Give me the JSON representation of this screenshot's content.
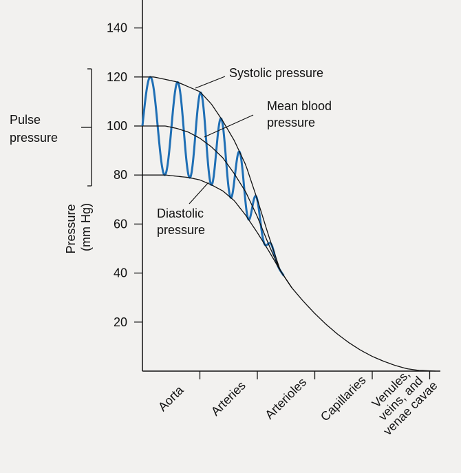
{
  "chart_data": {
    "type": "line",
    "title": "",
    "ylabel": "Pressure\n(mm Hg)",
    "xlabel": "",
    "ylim": [
      0,
      150
    ],
    "yticks": [
      20,
      40,
      60,
      80,
      100,
      120,
      140
    ],
    "categories": [
      "Aorta",
      "Arteries",
      "Arterioles",
      "Capillaries",
      "Venules,\nveins, and\nvenae cavae"
    ],
    "grid": false,
    "series": [
      {
        "name": "Systolic pressure",
        "x": [
          0,
          0.2,
          0.4,
          0.6,
          0.8,
          1.0,
          1.2,
          1.4,
          1.6,
          1.8,
          2.0,
          2.2,
          2.4,
          2.6,
          2.8,
          3.0,
          3.2,
          3.4,
          3.6,
          3.8,
          4.0,
          4.2,
          4.4,
          4.6,
          4.8,
          5.1
        ],
        "values": [
          120,
          120,
          119,
          118,
          116,
          114,
          109,
          102,
          94,
          84,
          70,
          55,
          41,
          34,
          28.5,
          23.5,
          19,
          15,
          11.5,
          8.5,
          6,
          4,
          2.3,
          1,
          0.3,
          0
        ]
      },
      {
        "name": "Mean blood pressure",
        "x": [
          0,
          0.2,
          0.4,
          0.6,
          0.8,
          1.0,
          1.2,
          1.4,
          1.6,
          1.8,
          2.0,
          2.2,
          2.4,
          2.6
        ],
        "values": [
          100,
          100,
          100,
          99,
          97.5,
          95,
          91.5,
          87,
          80.5,
          73,
          63,
          51.5,
          41,
          34
        ]
      },
      {
        "name": "Diastolic pressure",
        "x": [
          0,
          0.2,
          0.4,
          0.6,
          0.8,
          1.0,
          1.2,
          1.4,
          1.6,
          1.8,
          2.0,
          2.2,
          2.4,
          2.6
        ],
        "values": [
          80,
          80,
          80,
          79.5,
          79,
          78,
          76,
          73.5,
          69.5,
          63.5,
          56.5,
          49,
          41,
          34
        ]
      }
    ],
    "pulse_wave": {
      "color": "#1f6fb5",
      "cycles": 7,
      "x_range": [
        0,
        2.46
      ]
    },
    "annotations": {
      "systolic": "Systolic pressure",
      "mean_line1": "Mean blood",
      "mean_line2": "pressure",
      "diastolic_line1": "Diastolic",
      "diastolic_line2": "pressure",
      "pulse_line1": "Pulse",
      "pulse_line2": "pressure"
    }
  }
}
